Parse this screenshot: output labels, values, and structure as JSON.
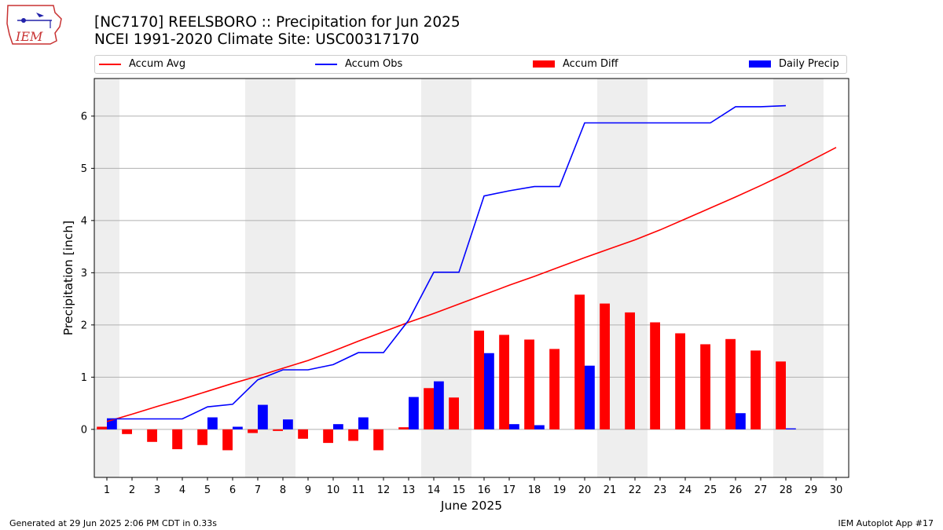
{
  "header": {
    "title_line1": "[NC7170] REELSBORO :: Precipitation for Jun 2025",
    "title_line2": "NCEI 1991-2020 Climate Site: USC00317170",
    "logo_text": "IEM"
  },
  "footer": {
    "left": "Generated at 29 Jun 2025 2:06 PM CDT in 0.33s",
    "right": "IEM Autoplot App #17"
  },
  "colors": {
    "accum_avg": "#ff0000",
    "accum_obs": "#0000ff",
    "accum_diff": "#ff0000",
    "daily_precip": "#0000ff",
    "weekend_shade": "#eeeeee",
    "grid": "#b0b0b0"
  },
  "chart_data": {
    "type": "bar",
    "xlabel": "June 2025",
    "ylabel": "Precipitation [inch]",
    "ylim": [
      -0.92,
      6.72
    ],
    "xlim": [
      0.5,
      30.5
    ],
    "yticks": [
      0,
      1,
      2,
      3,
      4,
      5,
      6
    ],
    "grid": "horizontal",
    "legend_position": "top",
    "shaded_days": [
      1,
      7,
      8,
      14,
      15,
      21,
      22,
      28,
      29
    ],
    "days": [
      1,
      2,
      3,
      4,
      5,
      6,
      7,
      8,
      9,
      10,
      11,
      12,
      13,
      14,
      15,
      16,
      17,
      18,
      19,
      20,
      21,
      22,
      23,
      24,
      25,
      26,
      27,
      28,
      29,
      30
    ],
    "series": [
      {
        "name": "Accum Avg",
        "kind": "line",
        "values": [
          0.15,
          0.29,
          0.44,
          0.58,
          0.73,
          0.88,
          1.02,
          1.17,
          1.32,
          1.5,
          1.69,
          1.87,
          2.05,
          2.22,
          2.4,
          2.58,
          2.76,
          2.93,
          3.11,
          3.29,
          3.46,
          3.63,
          3.82,
          4.03,
          4.24,
          4.45,
          4.67,
          4.9,
          5.15,
          5.4
        ]
      },
      {
        "name": "Accum Obs",
        "kind": "line",
        "values": [
          0.2,
          0.2,
          0.2,
          0.2,
          0.43,
          0.48,
          0.95,
          1.14,
          1.14,
          1.24,
          1.47,
          1.47,
          2.09,
          3.01,
          3.01,
          4.47,
          4.57,
          4.65,
          4.65,
          5.87,
          5.87,
          5.87,
          5.87,
          5.87,
          5.87,
          6.18,
          6.18,
          6.2,
          null,
          null
        ]
      },
      {
        "name": "Accum Diff",
        "kind": "bar",
        "values": [
          0.05,
          -0.09,
          -0.24,
          -0.38,
          -0.3,
          -0.4,
          -0.07,
          -0.03,
          -0.18,
          -0.26,
          -0.22,
          -0.4,
          0.04,
          0.79,
          0.61,
          1.89,
          1.81,
          1.72,
          1.54,
          2.58,
          2.41,
          2.24,
          2.05,
          1.84,
          1.63,
          1.73,
          1.51,
          1.3,
          null,
          null
        ]
      },
      {
        "name": "Daily Precip",
        "kind": "bar",
        "values": [
          0.2,
          0,
          0,
          0,
          0.23,
          0.05,
          0.47,
          0.19,
          0,
          0.1,
          0.23,
          0,
          0.62,
          0.92,
          0,
          1.46,
          0.1,
          0.08,
          0,
          1.22,
          0,
          0,
          0,
          0,
          0,
          0.31,
          0,
          0.02,
          null,
          null
        ]
      }
    ]
  }
}
